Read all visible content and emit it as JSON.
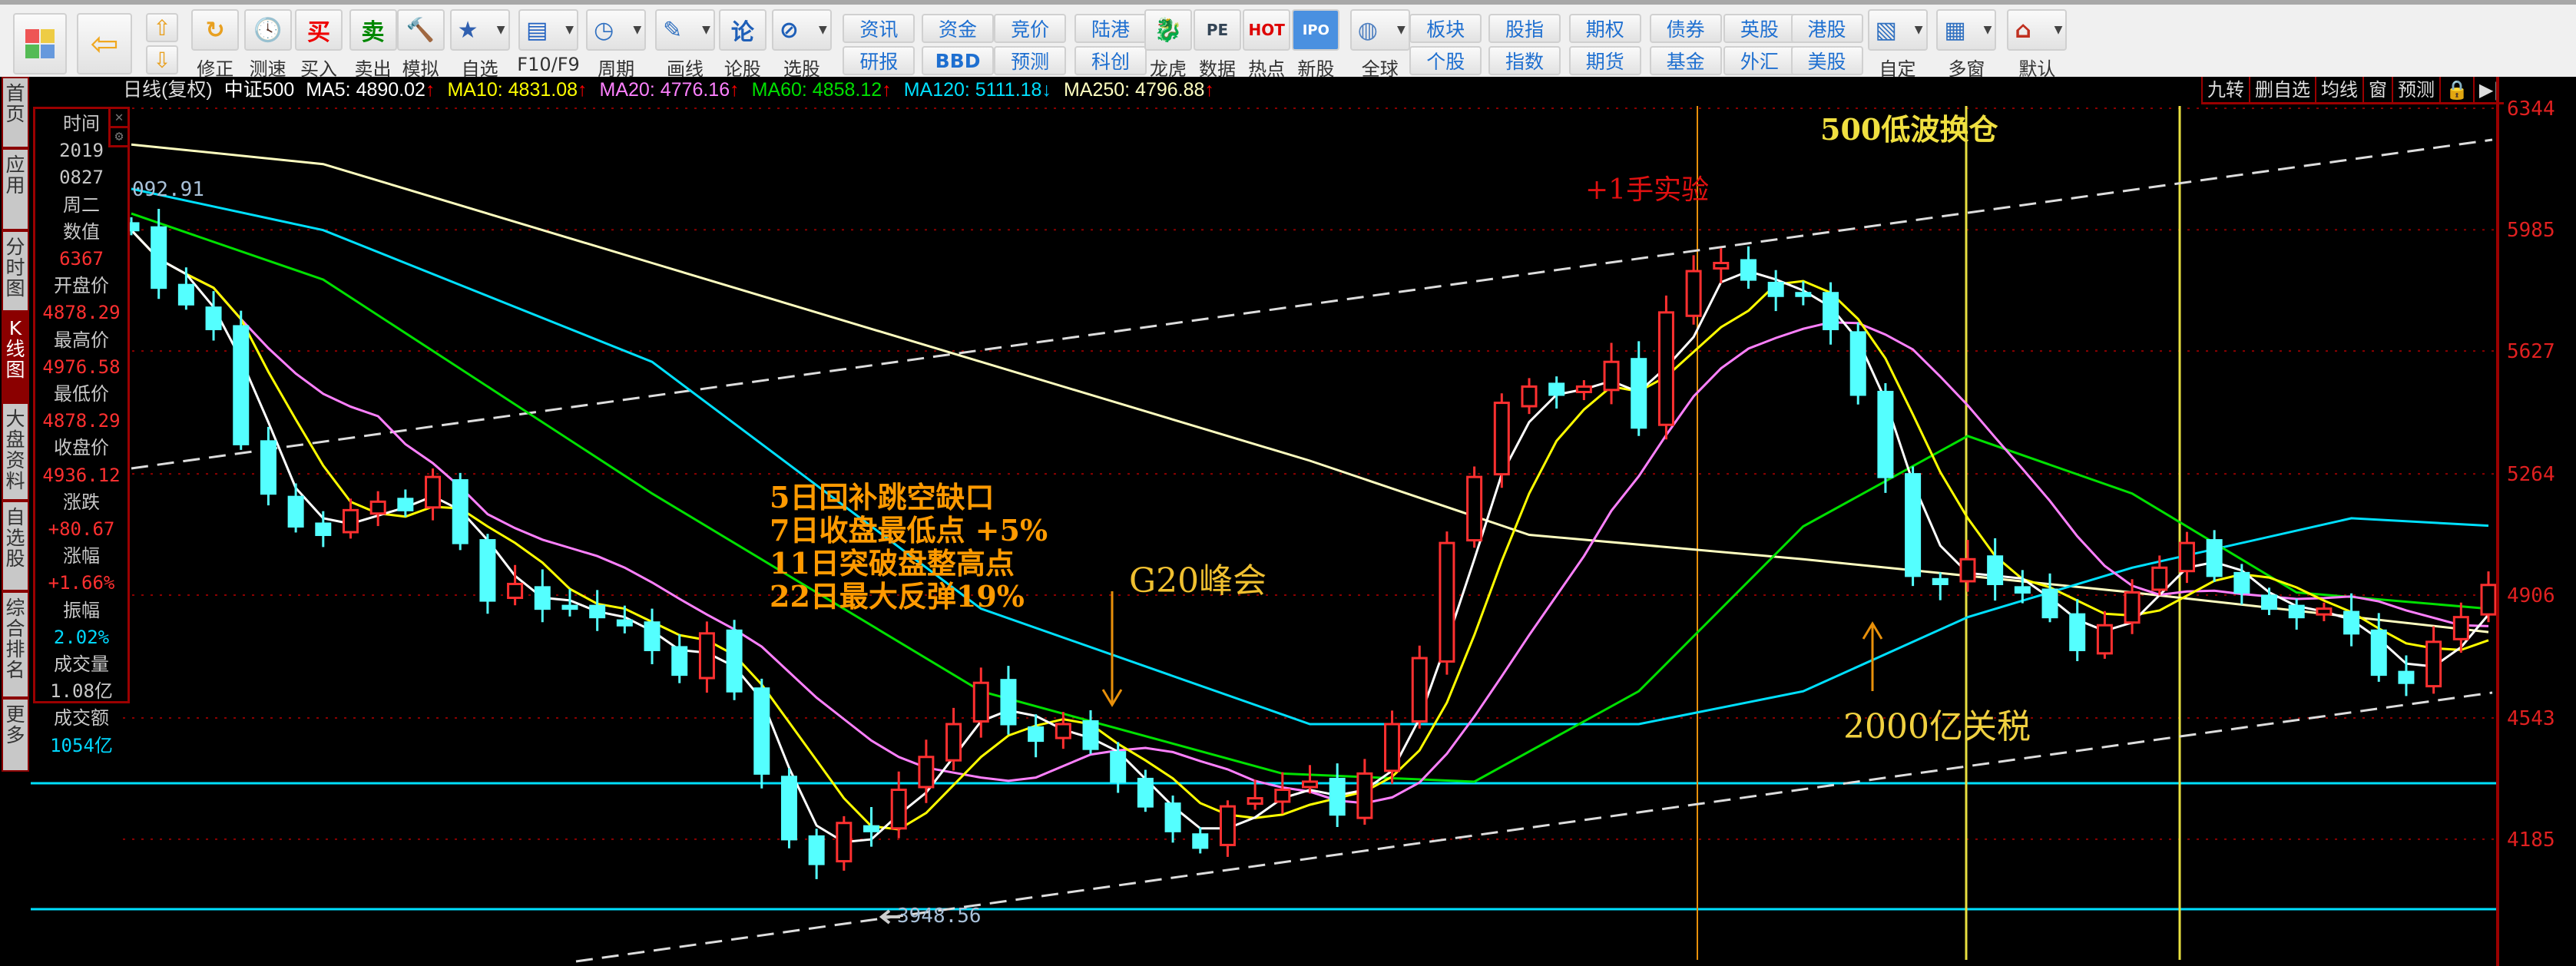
{
  "toolbar": {
    "items": [
      {
        "label": "修正",
        "icon": "refresh-icon"
      },
      {
        "label": "测速",
        "icon": "clock-icon"
      },
      {
        "label": "买入",
        "icon": "buy-icon"
      },
      {
        "label": "卖出",
        "icon": "sell-icon"
      },
      {
        "label": "模拟",
        "icon": "gavel-icon"
      },
      {
        "label": "自选",
        "icon": "star-folder-icon"
      },
      {
        "label": "F10/F9",
        "icon": "document-icon"
      },
      {
        "label": "周期",
        "icon": "period-icon"
      },
      {
        "label": "画线",
        "icon": "pencil-icon"
      },
      {
        "label": "论股",
        "icon": "lun-icon"
      },
      {
        "label": "选股",
        "icon": "stock-pick-icon"
      }
    ],
    "text_buttons": [
      [
        "资讯",
        "研报"
      ],
      [
        "资金",
        "BBD"
      ],
      [
        "竞价",
        "预测"
      ],
      [
        "陆港",
        "科创"
      ]
    ],
    "icon_buttons2": [
      {
        "label": "龙虎",
        "icon": "dragon-icon"
      },
      {
        "label": "数据",
        "icon": "pe-icon"
      },
      {
        "label": "热点",
        "icon": "hot-icon"
      },
      {
        "label": "新股",
        "icon": "ipo-icon"
      },
      {
        "label": "全球",
        "icon": "globe-icon"
      }
    ],
    "text_buttons2": [
      [
        "板块",
        "个股"
      ],
      [
        "股指",
        "指数"
      ],
      [
        "期权",
        "期货"
      ],
      [
        "债券",
        "基金"
      ],
      [
        "英股",
        "外汇"
      ],
      [
        "港股",
        "美股"
      ]
    ],
    "icon_buttons3": [
      {
        "label": "自定",
        "icon": "custom-icon"
      },
      {
        "label": "多窗",
        "icon": "multi-window-icon"
      },
      {
        "label": "默认",
        "icon": "home-icon"
      }
    ],
    "buy_glyph": "买",
    "sell_glyph": "卖",
    "lun_glyph": "论",
    "pe_glyph": "PE",
    "hot_glyph": "HOT",
    "ipo_glyph": "IPO"
  },
  "infoline": {
    "period": "日线(复权)",
    "name": "中证500",
    "ma": [
      {
        "label": "MA5: 4890.02",
        "dir": "↑",
        "color": "#ffffff"
      },
      {
        "label": "MA10: 4831.08",
        "dir": "↑",
        "color": "#ffff00"
      },
      {
        "label": "MA20: 4776.16",
        "dir": "↑",
        "color": "#ff80ff"
      },
      {
        "label": "MA60: 4858.12",
        "dir": "↑",
        "color": "#00e000"
      },
      {
        "label": "MA120: 5111.18",
        "dir": "↓",
        "color": "#00e0ff"
      },
      {
        "label": "MA250: 4796.88",
        "dir": "↑",
        "color": "#ffffc0"
      }
    ]
  },
  "sidebar": {
    "tabs": [
      "首页",
      "应用",
      "分时图",
      "K线图",
      "大盘资料",
      "自选股",
      "综合排名",
      "更多"
    ],
    "active": "K线图"
  },
  "panel": {
    "rows": [
      {
        "label": "时间",
        "value": "2019",
        "c": "#c8c8c8"
      },
      {
        "label": "0827",
        "value": "周二",
        "c": "#c8c8c8"
      },
      {
        "label": "数值",
        "value": "6367",
        "c": "#ff3030"
      },
      {
        "label": "开盘价",
        "value": "4878.29",
        "c": "#ff3030"
      },
      {
        "label": "最高价",
        "value": "4976.58",
        "c": "#ff3030"
      },
      {
        "label": "最低价",
        "value": "4878.29",
        "c": "#ff3030"
      },
      {
        "label": "收盘价",
        "value": "4936.12",
        "c": "#ff3030"
      },
      {
        "label": "涨跌",
        "value": "+80.67",
        "c": "#ff3030"
      },
      {
        "label": "涨幅",
        "value": "+1.66%",
        "c": "#ff3030"
      },
      {
        "label": "振幅",
        "value": "2.02%",
        "c": "#00d8ff"
      },
      {
        "label": "成交量",
        "value": "1.08亿",
        "c": "#c8c8c8"
      },
      {
        "label": "成交额",
        "value": "1054亿",
        "c": "#00d8ff"
      }
    ]
  },
  "right_buttons": [
    "九转",
    "删自选",
    "均线",
    "窗",
    "预测",
    "🔒",
    "▶|"
  ],
  "annotations": {
    "experiment": "+1手实验",
    "switch": "500低波换仓",
    "tariff": "2000亿关税",
    "g20": "G20峰会",
    "notes": [
      "5日回补跳空缺口",
      "7日收盘最低点 +5%",
      "11日突破盘整高点",
      "22日最大反弹19%"
    ],
    "high_label": "092.91",
    "low_label": "3948.56"
  },
  "chart_data": {
    "type": "candlestick",
    "y_ticks": [
      6344,
      5985,
      5627,
      5264,
      4906,
      4543,
      4185
    ],
    "ylim": [
      3850,
      6344
    ],
    "closes": [
      5984,
      5814,
      5765,
      5692,
      5352,
      5206,
      5109,
      5084,
      5157,
      5182,
      5157,
      5255,
      5060,
      4890,
      4939,
      4866,
      4866,
      4841,
      4817,
      4744,
      4671,
      4793,
      4622,
      4379,
      4185,
      4112,
      4233,
      4209,
      4331,
      4428,
      4525,
      4647,
      4525,
      4476,
      4525,
      4452,
      4355,
      4282,
      4209,
      4160,
      4282,
      4306,
      4331,
      4355,
      4258,
      4379,
      4525,
      4720,
      5060,
      5255,
      5474,
      5522,
      5498,
      5522,
      5595,
      5401,
      5741,
      5863,
      5887,
      5838,
      5790,
      5790,
      5692,
      5498,
      5255,
      4963,
      4939,
      5012,
      4939,
      4914,
      4841,
      4744,
      4817,
      4914,
      4987,
      5060,
      4963,
      4914,
      4866,
      4841,
      4866,
      4793,
      4671,
      4647,
      4768,
      4841,
      4936
    ],
    "ma60": [
      [
        0,
        6033
      ],
      [
        7,
        5838
      ],
      [
        19,
        5206
      ],
      [
        31,
        4622
      ],
      [
        42,
        4379
      ],
      [
        49,
        4355
      ],
      [
        55,
        4622
      ],
      [
        61,
        5109
      ],
      [
        67,
        5376
      ],
      [
        73,
        5206
      ],
      [
        79,
        4914
      ],
      [
        86,
        4866
      ]
    ],
    "ma120": [
      [
        0,
        6106
      ],
      [
        7,
        5984
      ],
      [
        19,
        5595
      ],
      [
        31,
        4866
      ],
      [
        43,
        4525
      ],
      [
        55,
        4525
      ],
      [
        61,
        4622
      ],
      [
        67,
        4841
      ],
      [
        73,
        4987
      ],
      [
        81,
        5133
      ],
      [
        86,
        5111
      ]
    ],
    "ma250": [
      [
        0,
        6237
      ],
      [
        7,
        6179
      ],
      [
        19,
        5887
      ],
      [
        31,
        5595
      ],
      [
        43,
        5303
      ],
      [
        51,
        5084
      ],
      [
        61,
        5012
      ],
      [
        73,
        4914
      ],
      [
        86,
        4797
      ]
    ],
    "colors": {
      "up": "#ff3030",
      "down": "#54ffff",
      "ma5": "#ffffff",
      "ma10": "#ffff00",
      "ma20": "#ff80ff",
      "ma60": "#00e000",
      "ma120": "#00e0ff",
      "ma250": "#ffffc0"
    }
  }
}
